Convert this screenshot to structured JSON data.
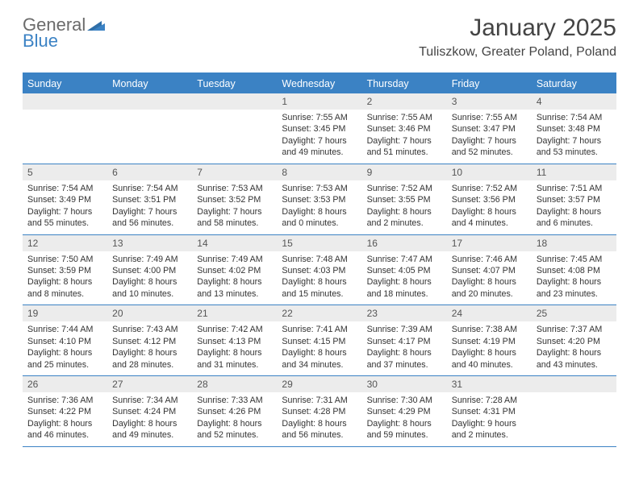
{
  "logo": {
    "word1": "General",
    "word2": "Blue"
  },
  "title": "January 2025",
  "location": "Tuliszkow, Greater Poland, Poland",
  "colors": {
    "accent": "#3b82c4",
    "header_text": "#ffffff",
    "daynum_bg": "#ececec"
  },
  "weekdays": [
    "Sunday",
    "Monday",
    "Tuesday",
    "Wednesday",
    "Thursday",
    "Friday",
    "Saturday"
  ],
  "weeks": [
    [
      null,
      null,
      null,
      {
        "n": "1",
        "sr": "Sunrise: 7:55 AM",
        "ss": "Sunset: 3:45 PM",
        "d1": "Daylight: 7 hours",
        "d2": "and 49 minutes."
      },
      {
        "n": "2",
        "sr": "Sunrise: 7:55 AM",
        "ss": "Sunset: 3:46 PM",
        "d1": "Daylight: 7 hours",
        "d2": "and 51 minutes."
      },
      {
        "n": "3",
        "sr": "Sunrise: 7:55 AM",
        "ss": "Sunset: 3:47 PM",
        "d1": "Daylight: 7 hours",
        "d2": "and 52 minutes."
      },
      {
        "n": "4",
        "sr": "Sunrise: 7:54 AM",
        "ss": "Sunset: 3:48 PM",
        "d1": "Daylight: 7 hours",
        "d2": "and 53 minutes."
      }
    ],
    [
      {
        "n": "5",
        "sr": "Sunrise: 7:54 AM",
        "ss": "Sunset: 3:49 PM",
        "d1": "Daylight: 7 hours",
        "d2": "and 55 minutes."
      },
      {
        "n": "6",
        "sr": "Sunrise: 7:54 AM",
        "ss": "Sunset: 3:51 PM",
        "d1": "Daylight: 7 hours",
        "d2": "and 56 minutes."
      },
      {
        "n": "7",
        "sr": "Sunrise: 7:53 AM",
        "ss": "Sunset: 3:52 PM",
        "d1": "Daylight: 7 hours",
        "d2": "and 58 minutes."
      },
      {
        "n": "8",
        "sr": "Sunrise: 7:53 AM",
        "ss": "Sunset: 3:53 PM",
        "d1": "Daylight: 8 hours",
        "d2": "and 0 minutes."
      },
      {
        "n": "9",
        "sr": "Sunrise: 7:52 AM",
        "ss": "Sunset: 3:55 PM",
        "d1": "Daylight: 8 hours",
        "d2": "and 2 minutes."
      },
      {
        "n": "10",
        "sr": "Sunrise: 7:52 AM",
        "ss": "Sunset: 3:56 PM",
        "d1": "Daylight: 8 hours",
        "d2": "and 4 minutes."
      },
      {
        "n": "11",
        "sr": "Sunrise: 7:51 AM",
        "ss": "Sunset: 3:57 PM",
        "d1": "Daylight: 8 hours",
        "d2": "and 6 minutes."
      }
    ],
    [
      {
        "n": "12",
        "sr": "Sunrise: 7:50 AM",
        "ss": "Sunset: 3:59 PM",
        "d1": "Daylight: 8 hours",
        "d2": "and 8 minutes."
      },
      {
        "n": "13",
        "sr": "Sunrise: 7:49 AM",
        "ss": "Sunset: 4:00 PM",
        "d1": "Daylight: 8 hours",
        "d2": "and 10 minutes."
      },
      {
        "n": "14",
        "sr": "Sunrise: 7:49 AM",
        "ss": "Sunset: 4:02 PM",
        "d1": "Daylight: 8 hours",
        "d2": "and 13 minutes."
      },
      {
        "n": "15",
        "sr": "Sunrise: 7:48 AM",
        "ss": "Sunset: 4:03 PM",
        "d1": "Daylight: 8 hours",
        "d2": "and 15 minutes."
      },
      {
        "n": "16",
        "sr": "Sunrise: 7:47 AM",
        "ss": "Sunset: 4:05 PM",
        "d1": "Daylight: 8 hours",
        "d2": "and 18 minutes."
      },
      {
        "n": "17",
        "sr": "Sunrise: 7:46 AM",
        "ss": "Sunset: 4:07 PM",
        "d1": "Daylight: 8 hours",
        "d2": "and 20 minutes."
      },
      {
        "n": "18",
        "sr": "Sunrise: 7:45 AM",
        "ss": "Sunset: 4:08 PM",
        "d1": "Daylight: 8 hours",
        "d2": "and 23 minutes."
      }
    ],
    [
      {
        "n": "19",
        "sr": "Sunrise: 7:44 AM",
        "ss": "Sunset: 4:10 PM",
        "d1": "Daylight: 8 hours",
        "d2": "and 25 minutes."
      },
      {
        "n": "20",
        "sr": "Sunrise: 7:43 AM",
        "ss": "Sunset: 4:12 PM",
        "d1": "Daylight: 8 hours",
        "d2": "and 28 minutes."
      },
      {
        "n": "21",
        "sr": "Sunrise: 7:42 AM",
        "ss": "Sunset: 4:13 PM",
        "d1": "Daylight: 8 hours",
        "d2": "and 31 minutes."
      },
      {
        "n": "22",
        "sr": "Sunrise: 7:41 AM",
        "ss": "Sunset: 4:15 PM",
        "d1": "Daylight: 8 hours",
        "d2": "and 34 minutes."
      },
      {
        "n": "23",
        "sr": "Sunrise: 7:39 AM",
        "ss": "Sunset: 4:17 PM",
        "d1": "Daylight: 8 hours",
        "d2": "and 37 minutes."
      },
      {
        "n": "24",
        "sr": "Sunrise: 7:38 AM",
        "ss": "Sunset: 4:19 PM",
        "d1": "Daylight: 8 hours",
        "d2": "and 40 minutes."
      },
      {
        "n": "25",
        "sr": "Sunrise: 7:37 AM",
        "ss": "Sunset: 4:20 PM",
        "d1": "Daylight: 8 hours",
        "d2": "and 43 minutes."
      }
    ],
    [
      {
        "n": "26",
        "sr": "Sunrise: 7:36 AM",
        "ss": "Sunset: 4:22 PM",
        "d1": "Daylight: 8 hours",
        "d2": "and 46 minutes."
      },
      {
        "n": "27",
        "sr": "Sunrise: 7:34 AM",
        "ss": "Sunset: 4:24 PM",
        "d1": "Daylight: 8 hours",
        "d2": "and 49 minutes."
      },
      {
        "n": "28",
        "sr": "Sunrise: 7:33 AM",
        "ss": "Sunset: 4:26 PM",
        "d1": "Daylight: 8 hours",
        "d2": "and 52 minutes."
      },
      {
        "n": "29",
        "sr": "Sunrise: 7:31 AM",
        "ss": "Sunset: 4:28 PM",
        "d1": "Daylight: 8 hours",
        "d2": "and 56 minutes."
      },
      {
        "n": "30",
        "sr": "Sunrise: 7:30 AM",
        "ss": "Sunset: 4:29 PM",
        "d1": "Daylight: 8 hours",
        "d2": "and 59 minutes."
      },
      {
        "n": "31",
        "sr": "Sunrise: 7:28 AM",
        "ss": "Sunset: 4:31 PM",
        "d1": "Daylight: 9 hours",
        "d2": "and 2 minutes."
      },
      null
    ]
  ]
}
